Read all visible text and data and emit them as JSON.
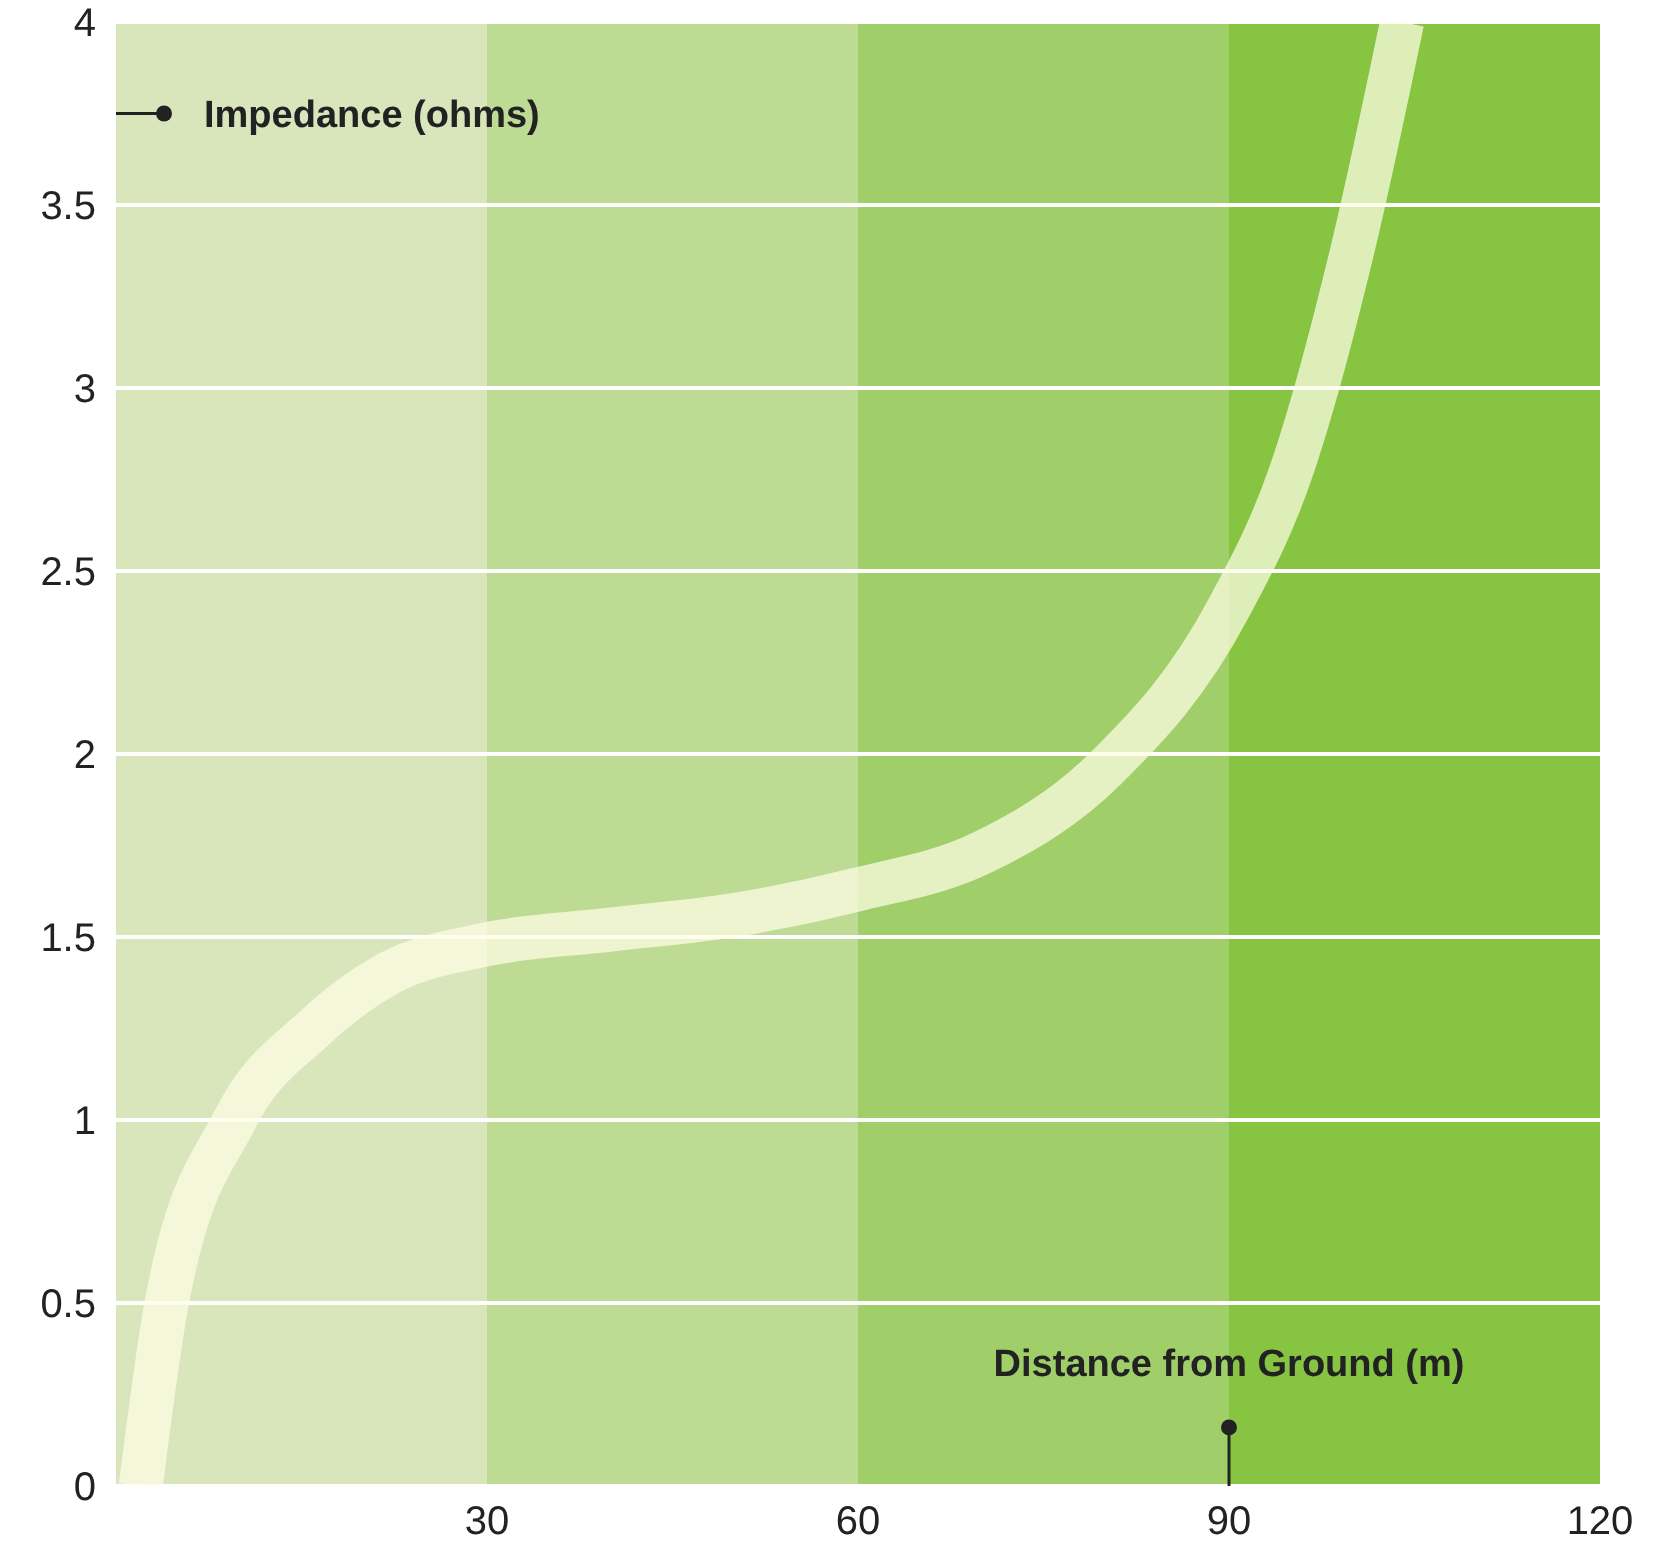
{
  "chart_data": {
    "type": "line",
    "xlabel": "Distance from Ground (m)",
    "ylabel": "Impedance (ohms)",
    "xlim": [
      0,
      120
    ],
    "xticks": [
      30,
      60,
      90,
      120
    ],
    "ylim": [
      0,
      4
    ],
    "yticks": [
      0,
      0.5,
      1,
      1.5,
      2,
      2.5,
      3,
      3.5,
      4
    ],
    "grid": "y",
    "marker": "none",
    "line_style": "solid",
    "bands": [
      {
        "axis": "x",
        "from": 0,
        "to": 30,
        "color": "#d9e6bb"
      },
      {
        "axis": "x",
        "from": 30,
        "to": 60,
        "color": "#bddb93"
      },
      {
        "axis": "x",
        "from": 60,
        "to": 90,
        "color": "#a0ce69"
      },
      {
        "axis": "x",
        "from": 90,
        "to": 120,
        "color": "#86c442"
      }
    ],
    "series": [
      {
        "color": "#fffde6",
        "x": [
          2,
          4.1,
          9.6,
          16,
          22,
          30,
          40,
          50,
          60,
          70,
          80,
          90,
          95,
          100,
          104
        ],
        "values": [
          0,
          0.5,
          1,
          1.25,
          1.4,
          1.48,
          1.52,
          1.56,
          1.63,
          1.73,
          1.96,
          2.4,
          2.77,
          3.38,
          4
        ]
      }
    ]
  }
}
